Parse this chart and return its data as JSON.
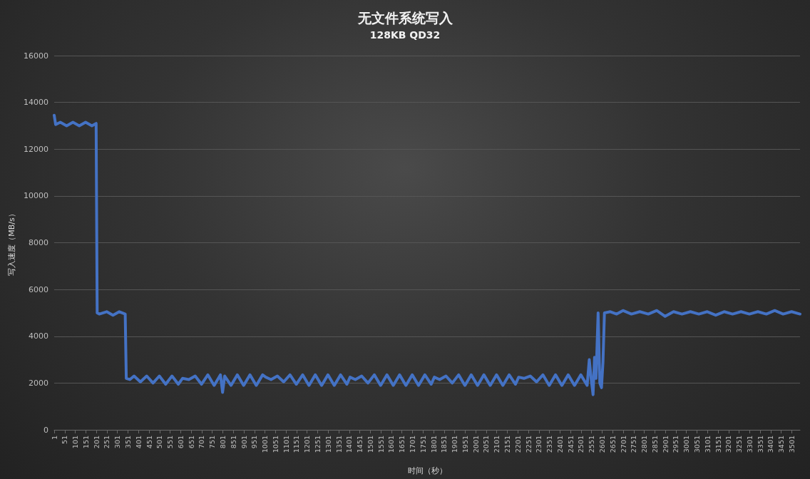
{
  "chart_data": {
    "type": "line",
    "title": "无文件系统写入",
    "subtitle": "128KB QD32",
    "xlabel": "时间（秒）",
    "ylabel": "写入速度（MB/s）",
    "xlim": [
      1,
      3540
    ],
    "xticks": [
      1,
      51,
      101,
      151,
      201,
      251,
      301,
      351,
      401,
      451,
      501,
      551,
      601,
      651,
      701,
      751,
      801,
      851,
      901,
      951,
      1001,
      1051,
      1101,
      1151,
      1201,
      1251,
      1301,
      1351,
      1401,
      1451,
      1501,
      1551,
      1601,
      1651,
      1701,
      1751,
      1801,
      1851,
      1901,
      1951,
      2001,
      2051,
      2101,
      2151,
      2201,
      2251,
      2301,
      2351,
      2401,
      2451,
      2501,
      2551,
      2601,
      2651,
      2701,
      2751,
      2801,
      2851,
      2901,
      2951,
      3001,
      3051,
      3101,
      3151,
      3201,
      3251,
      3301,
      3351,
      3401,
      3451,
      3501
    ],
    "ylim": [
      0,
      16000
    ],
    "yticks": [
      0,
      2000,
      4000,
      6000,
      8000,
      10000,
      12000,
      14000,
      16000
    ],
    "grid": "y",
    "marker": "none",
    "line_style": "solid",
    "series": [
      {
        "color": "#4472c4",
        "x": [
          1,
          8,
          30,
          60,
          90,
          120,
          150,
          180,
          200,
          205,
          215,
          250,
          280,
          310,
          338,
          343,
          360,
          380,
          410,
          440,
          470,
          500,
          530,
          560,
          590,
          610,
          640,
          670,
          700,
          730,
          760,
          790,
          800,
          810,
          840,
          870,
          900,
          930,
          960,
          990,
          1005,
          1030,
          1060,
          1090,
          1120,
          1150,
          1180,
          1210,
          1240,
          1270,
          1300,
          1330,
          1360,
          1390,
          1405,
          1430,
          1460,
          1490,
          1520,
          1550,
          1580,
          1610,
          1640,
          1670,
          1700,
          1730,
          1760,
          1790,
          1805,
          1830,
          1860,
          1890,
          1920,
          1950,
          1980,
          2010,
          2040,
          2070,
          2100,
          2130,
          2160,
          2190,
          2205,
          2230,
          2260,
          2290,
          2320,
          2350,
          2380,
          2410,
          2440,
          2470,
          2500,
          2530,
          2540,
          2550,
          2558,
          2565,
          2572,
          2582,
          2590,
          2598,
          2605,
          2612,
          2640,
          2670,
          2700,
          2740,
          2780,
          2820,
          2860,
          2900,
          2940,
          2980,
          3020,
          3060,
          3100,
          3140,
          3180,
          3220,
          3260,
          3300,
          3340,
          3380,
          3420,
          3460,
          3500,
          3540
        ],
        "values": [
          13450,
          13050,
          13150,
          13000,
          13150,
          13000,
          13150,
          13000,
          13100,
          5000,
          4950,
          5050,
          4900,
          5050,
          4950,
          2200,
          2150,
          2300,
          2050,
          2300,
          2000,
          2300,
          1950,
          2300,
          1950,
          2200,
          2150,
          2300,
          1950,
          2350,
          1900,
          2350,
          1600,
          2300,
          1900,
          2350,
          1900,
          2350,
          1900,
          2350,
          2250,
          2150,
          2300,
          2050,
          2350,
          1950,
          2350,
          1900,
          2350,
          1900,
          2350,
          1900,
          2350,
          1950,
          2250,
          2150,
          2300,
          2000,
          2350,
          1900,
          2350,
          1900,
          2350,
          1900,
          2350,
          1900,
          2350,
          1950,
          2250,
          2150,
          2300,
          2000,
          2350,
          1900,
          2350,
          1900,
          2350,
          1900,
          2350,
          1900,
          2350,
          1950,
          2250,
          2200,
          2300,
          2050,
          2350,
          1900,
          2350,
          1900,
          2350,
          1900,
          2350,
          1900,
          3000,
          2100,
          1500,
          3100,
          2200,
          5000,
          2000,
          1800,
          2900,
          5000,
          5050,
          4950,
          5100,
          4950,
          5050,
          4950,
          5100,
          4850,
          5050,
          4950,
          5050,
          4950,
          5050,
          4900,
          5050,
          4950,
          5050,
          4950,
          5050,
          4950,
          5100,
          4950,
          5050,
          4950
        ]
      }
    ]
  }
}
